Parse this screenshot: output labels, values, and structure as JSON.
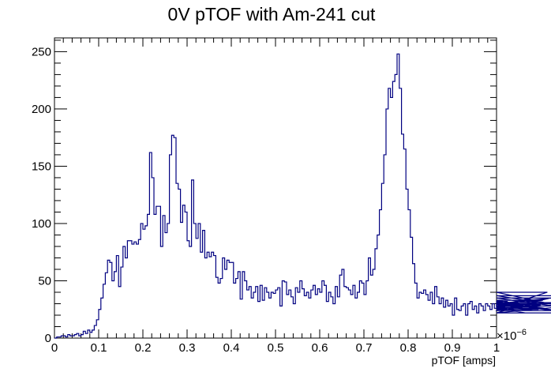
{
  "chart_data": {
    "type": "histogram",
    "title": "0V pTOF with Am-241 cut",
    "xlabel": "pTOF [amps]",
    "ylabel": "",
    "x_multiplier": "×10",
    "x_multiplier_exp": "−6",
    "xlim": [
      0,
      1
    ],
    "ylim": [
      0,
      262
    ],
    "x_ticks": [
      "0",
      "0.1",
      "0.2",
      "0.3",
      "0.4",
      "0.5",
      "0.6",
      "0.7",
      "0.8",
      "0.9",
      "1"
    ],
    "y_ticks": [
      "0",
      "50",
      "100",
      "150",
      "200",
      "250"
    ],
    "bin_width": 0.005,
    "line_color": "#000080",
    "values": [
      0,
      1,
      1,
      2,
      2,
      1,
      3,
      2,
      2,
      3,
      4,
      2,
      3,
      6,
      4,
      7,
      5,
      7,
      11,
      16,
      25,
      35,
      47,
      57,
      68,
      66,
      50,
      58,
      72,
      45,
      62,
      80,
      70,
      85,
      85,
      82,
      84,
      82,
      86,
      100,
      95,
      98,
      108,
      162,
      140,
      108,
      115,
      115,
      80,
      107,
      92,
      100,
      160,
      177,
      175,
      135,
      130,
      101,
      116,
      110,
      85,
      80,
      138,
      100,
      87,
      100,
      75,
      94,
      70,
      75,
      71,
      75,
      72,
      53,
      48,
      52,
      70,
      60,
      68,
      66,
      66,
      48,
      52,
      58,
      34,
      58,
      50,
      42,
      45,
      35,
      40,
      45,
      32,
      46,
      33,
      44,
      40,
      35,
      40,
      39,
      42,
      44,
      28,
      50,
      49,
      38,
      42,
      36,
      30,
      44,
      40,
      50,
      43,
      37,
      40,
      35,
      42,
      46,
      38,
      43,
      40,
      50,
      46,
      32,
      40,
      36,
      30,
      45,
      36,
      55,
      60,
      45,
      44,
      42,
      38,
      46,
      35,
      40,
      50,
      48,
      38,
      50,
      70,
      55,
      60,
      78,
      90,
      112,
      135,
      160,
      200,
      218,
      210,
      224,
      230,
      248,
      218,
      178,
      165,
      130,
      112,
      88,
      65,
      48,
      35,
      40,
      39,
      42,
      38,
      33,
      40,
      30,
      45,
      36,
      30,
      35,
      27,
      33,
      28,
      30,
      20,
      35,
      25,
      24,
      28,
      30,
      20,
      30,
      32,
      25,
      28,
      22,
      30,
      28,
      24,
      30,
      28,
      25,
      30,
      26,
      32,
      28,
      24,
      30,
      27,
      32,
      30,
      28,
      25,
      24,
      28,
      30,
      26,
      22,
      30,
      27,
      35,
      30,
      27,
      25,
      29,
      33,
      26,
      40,
      30,
      35,
      28,
      31,
      24,
      37,
      28,
      31,
      22,
      28
    ]
  }
}
